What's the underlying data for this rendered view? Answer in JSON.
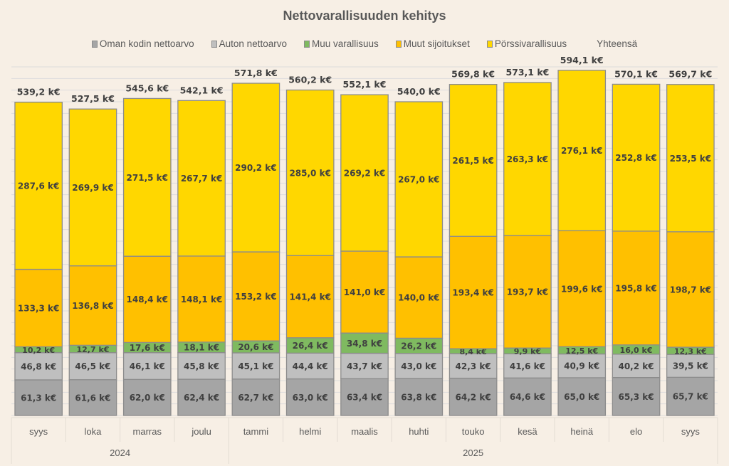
{
  "chart_data": {
    "type": "bar",
    "stacked": true,
    "title": "Nettovarallisuuden kehitys",
    "xlabel": "",
    "ylabel": "",
    "ylim": [
      0,
      600
    ],
    "grid": true,
    "grid_step": 20,
    "legend_position": "top",
    "unit_suffix": " k€",
    "categories": [
      "syys",
      "loka",
      "marras",
      "joulu",
      "tammi",
      "helmi",
      "maalis",
      "huhti",
      "touko",
      "kesä",
      "heinä",
      "elo",
      "syys"
    ],
    "category_groups": [
      {
        "label": "2024",
        "count": 4
      },
      {
        "label": "2025",
        "count": 9
      }
    ],
    "series": [
      {
        "name": "Oman kodin nettoarvo",
        "color": "#a5a5a5",
        "values": [
          61.3,
          61.6,
          62.0,
          62.4,
          62.7,
          63.0,
          63.4,
          63.8,
          64.2,
          64.6,
          65.0,
          65.3,
          65.7
        ]
      },
      {
        "name": "Auton nettoarvo",
        "color": "#bfbfbf",
        "values": [
          46.8,
          46.5,
          46.1,
          45.8,
          45.1,
          44.4,
          43.7,
          43.0,
          42.3,
          41.6,
          40.9,
          40.2,
          39.5
        ]
      },
      {
        "name": "Muu varallisuus",
        "color": "#7fba60",
        "values": [
          10.2,
          12.7,
          17.6,
          18.1,
          20.6,
          26.4,
          34.8,
          26.2,
          8.4,
          9.9,
          12.5,
          16.0,
          12.3
        ]
      },
      {
        "name": "Muut sijoitukset",
        "color": "#ffc000",
        "values": [
          133.3,
          136.8,
          148.4,
          148.1,
          153.2,
          141.4,
          141.0,
          140.0,
          193.4,
          193.7,
          199.6,
          195.8,
          198.7
        ]
      },
      {
        "name": "Pörssivarallisuus",
        "color": "#ffd700",
        "values": [
          287.6,
          269.9,
          271.5,
          267.7,
          290.2,
          285.0,
          269.2,
          267.0,
          261.5,
          263.3,
          276.1,
          252.8,
          253.5
        ]
      }
    ],
    "totals": {
      "name": "Yhteensä",
      "values": [
        539.2,
        527.5,
        545.6,
        542.1,
        571.8,
        560.2,
        552.1,
        540.0,
        569.8,
        573.1,
        594.1,
        570.1,
        569.7
      ],
      "labels": [
        "539,2 k€",
        "527,5 k€",
        "545,6 k€",
        "542,1 k€",
        "571,8 k€",
        "560,2 k€",
        "552,1 k€",
        "540,0 k€",
        "569,8 k€",
        "573,1 k€",
        "594,1 k€",
        "570,1 k€",
        "569,7 k€"
      ]
    },
    "value_labels": [
      [
        "61,3 k€",
        "61,6 k€",
        "62,0 k€",
        "62,4 k€",
        "62,7 k€",
        "63,0 k€",
        "63,4 k€",
        "63,8 k€",
        "64,2 k€",
        "64,6 k€",
        "65,0 k€",
        "65,3 k€",
        "65,7 k€"
      ],
      [
        "46,8 k€",
        "46,5 k€",
        "46,1 k€",
        "45,8 k€",
        "45,1 k€",
        "44,4 k€",
        "43,7 k€",
        "43,0 k€",
        "42,3 k€",
        "41,6 k€",
        "40,9 k€",
        "40,2 k€",
        "39,5 k€"
      ],
      [
        "10,2 k€",
        "12,7 k€",
        "17,6 k€",
        "18,1 k€",
        "20,6 k€",
        "26,4 k€",
        "34,8 k€",
        "26,2 k€",
        "8,4 k€",
        "9,9 k€",
        "12,5 k€",
        "16,0 k€",
        "12,3 k€"
      ],
      [
        "133,3 k€",
        "136,8 k€",
        "148,4 k€",
        "148,1 k€",
        "153,2 k€",
        "141,4 k€",
        "141,0 k€",
        "140,0 k€",
        "193,4 k€",
        "193,7 k€",
        "199,6 k€",
        "195,8 k€",
        "198,7 k€"
      ],
      [
        "287,6 k€",
        "269,9 k€",
        "271,5 k€",
        "267,7 k€",
        "290,2 k€",
        "285,0 k€",
        "269,2 k€",
        "267,0 k€",
        "261,5 k€",
        "263,3 k€",
        "276,1 k€",
        "252,8 k€",
        "253,5 k€"
      ]
    ]
  },
  "legend": {
    "items": [
      {
        "label": "Oman kodin nettoarvo",
        "color": "#a5a5a5",
        "icon": "square-swatch"
      },
      {
        "label": "Auton nettoarvo",
        "color": "#bfbfbf",
        "icon": "square-swatch"
      },
      {
        "label": "Muu varallisuus",
        "color": "#7fba60",
        "icon": "square-swatch"
      },
      {
        "label": "Muut sijoitukset",
        "color": "#ffc000",
        "icon": "square-swatch"
      },
      {
        "label": "Pörssivarallisuus",
        "color": "#ffd700",
        "icon": "square-swatch"
      },
      {
        "label": "Yhteensä",
        "color": "",
        "icon": "none"
      }
    ]
  },
  "colors": {
    "background": "#f7efe5",
    "gridline": "#dcdcdc",
    "bar_border": "#8c8c8c",
    "text": "#404040"
  }
}
